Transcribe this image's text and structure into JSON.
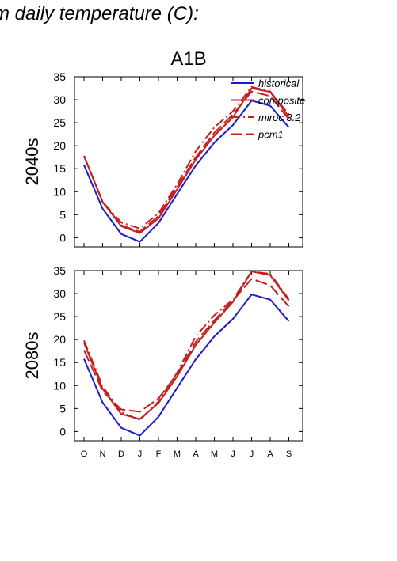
{
  "page_title": "m daily temperature (C):",
  "colors": {
    "historical": "#1c1ccc",
    "model": "#c42020"
  },
  "chart_data": [
    {
      "type": "line",
      "title": "A1B",
      "ylabel": "2040s",
      "xlabel": "",
      "categories": [
        "O",
        "N",
        "D",
        "J",
        "F",
        "M",
        "A",
        "M",
        "J",
        "J",
        "A",
        "S"
      ],
      "ylim": [
        -2,
        35
      ],
      "yticks": [
        0,
        5,
        10,
        15,
        20,
        25,
        30,
        35
      ],
      "ytick_labels": [
        "0",
        "5",
        "10",
        "15",
        "20",
        "25",
        "30",
        "35"
      ],
      "xtick_labels_visible": false,
      "grid": false,
      "legend": {
        "position": "top-right"
      },
      "series": [
        {
          "name": "historical",
          "style": "solid",
          "color": "#1c1ccc",
          "values": [
            15.8,
            6.3,
            0.8,
            -0.9,
            3.2,
            9.5,
            15.7,
            20.7,
            24.5,
            29.8,
            28.7,
            24.0
          ]
        },
        {
          "name": "composite",
          "style": "solid",
          "color": "#c42020",
          "values": [
            17.8,
            7.8,
            2.5,
            1.0,
            4.2,
            10.5,
            17.0,
            22.2,
            26.2,
            32.5,
            31.7,
            26.3
          ]
        },
        {
          "name": "miroc 3.2",
          "style": "dashdot",
          "color": "#c42020",
          "values": [
            17.8,
            7.8,
            3.3,
            2.0,
            5.3,
            11.6,
            18.8,
            24.0,
            27.5,
            32.8,
            31.8,
            26.8
          ]
        },
        {
          "name": "pcm1",
          "style": "dashed",
          "color": "#c42020",
          "values": [
            17.8,
            7.7,
            2.7,
            1.3,
            4.7,
            11.0,
            17.5,
            22.8,
            26.8,
            31.8,
            30.8,
            25.8
          ]
        }
      ]
    },
    {
      "type": "line",
      "title": "",
      "ylabel": "2080s",
      "xlabel": "",
      "categories": [
        "O",
        "N",
        "D",
        "J",
        "F",
        "M",
        "A",
        "M",
        "J",
        "J",
        "A",
        "S"
      ],
      "ylim": [
        -2,
        35
      ],
      "yticks": [
        0,
        5,
        10,
        15,
        20,
        25,
        30,
        35
      ],
      "ytick_labels": [
        "0",
        "5",
        "10",
        "15",
        "20",
        "25",
        "30",
        "35"
      ],
      "xtick_labels_visible": true,
      "grid": false,
      "legend": null,
      "series": [
        {
          "name": "historical",
          "style": "solid",
          "color": "#1c1ccc",
          "values": [
            15.8,
            6.3,
            0.8,
            -0.9,
            3.2,
            9.5,
            15.7,
            20.7,
            24.5,
            29.8,
            28.7,
            24.0
          ]
        },
        {
          "name": "composite",
          "style": "solid",
          "color": "#c42020",
          "values": [
            19.3,
            9.3,
            3.8,
            2.7,
            6.2,
            12.0,
            18.8,
            23.7,
            28.2,
            34.8,
            34.0,
            28.5
          ]
        },
        {
          "name": "miroc 3.2",
          "style": "dashdot",
          "color": "#c42020",
          "values": [
            19.8,
            9.8,
            4.2,
            2.5,
            6.5,
            12.8,
            20.7,
            25.3,
            28.7,
            34.8,
            34.3,
            28.8
          ]
        },
        {
          "name": "pcm1",
          "style": "dashed",
          "color": "#c42020",
          "values": [
            17.7,
            8.8,
            4.8,
            4.3,
            7.2,
            12.5,
            19.5,
            24.2,
            28.5,
            33.2,
            31.8,
            27.2
          ]
        }
      ]
    }
  ]
}
